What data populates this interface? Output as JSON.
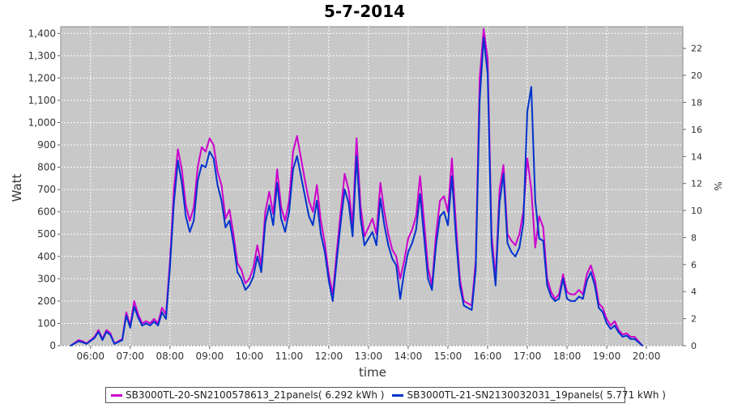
{
  "chart_data": {
    "type": "line",
    "title": "5-7-2014",
    "xlabel": "time",
    "ylabel": "Watt",
    "y2label": "%",
    "ylim": [
      0,
      1430
    ],
    "y2lim": [
      0,
      23.6
    ],
    "y_ticks": [
      "0",
      "100",
      "200",
      "300",
      "400",
      "500",
      "600",
      "700",
      "800",
      "900",
      "1,000",
      "1,100",
      "1,200",
      "1,300",
      "1,400"
    ],
    "y2_ticks": [
      "0",
      "2",
      "4",
      "6",
      "8",
      "10",
      "12",
      "14",
      "16",
      "18",
      "20",
      "22"
    ],
    "x_ticks": [
      "06:00",
      "07:00",
      "08:00",
      "09:00",
      "10:00",
      "11:00",
      "12:00",
      "13:00",
      "14:00",
      "15:00",
      "16:00",
      "17:00",
      "18:00",
      "19:00",
      "20:00"
    ],
    "xlim": [
      "05:15",
      "20:55"
    ],
    "grid": true,
    "background": "#c8c8c8",
    "series": [
      {
        "name": "SB3000TL-20-SN2100578613_21panels( 6.292 kWh )",
        "color": "#cc00cc",
        "points": [
          [
            "05:30",
            0
          ],
          [
            "05:42",
            25
          ],
          [
            "05:48",
            20
          ],
          [
            "05:54",
            10
          ],
          [
            "06:06",
            40
          ],
          [
            "06:12",
            70
          ],
          [
            "06:18",
            30
          ],
          [
            "06:24",
            70
          ],
          [
            "06:30",
            55
          ],
          [
            "06:36",
            10
          ],
          [
            "06:48",
            30
          ],
          [
            "06:54",
            150
          ],
          [
            "07:00",
            90
          ],
          [
            "07:06",
            200
          ],
          [
            "07:12",
            140
          ],
          [
            "07:18",
            100
          ],
          [
            "07:24",
            110
          ],
          [
            "07:30",
            100
          ],
          [
            "07:36",
            120
          ],
          [
            "07:42",
            100
          ],
          [
            "07:48",
            170
          ],
          [
            "07:54",
            140
          ],
          [
            "08:00",
            380
          ],
          [
            "08:06",
            700
          ],
          [
            "08:12",
            880
          ],
          [
            "08:18",
            790
          ],
          [
            "08:24",
            630
          ],
          [
            "08:30",
            560
          ],
          [
            "08:36",
            620
          ],
          [
            "08:42",
            800
          ],
          [
            "08:48",
            890
          ],
          [
            "08:54",
            870
          ],
          [
            "09:00",
            930
          ],
          [
            "09:06",
            900
          ],
          [
            "09:12",
            780
          ],
          [
            "09:18",
            720
          ],
          [
            "09:24",
            570
          ],
          [
            "09:30",
            610
          ],
          [
            "09:36",
            500
          ],
          [
            "09:42",
            370
          ],
          [
            "09:48",
            340
          ],
          [
            "09:54",
            280
          ],
          [
            "10:00",
            300
          ],
          [
            "10:06",
            350
          ],
          [
            "10:12",
            450
          ],
          [
            "10:18",
            360
          ],
          [
            "10:24",
            600
          ],
          [
            "10:30",
            690
          ],
          [
            "10:36",
            590
          ],
          [
            "10:42",
            790
          ],
          [
            "10:48",
            620
          ],
          [
            "10:54",
            560
          ],
          [
            "11:00",
            650
          ],
          [
            "11:06",
            870
          ],
          [
            "11:12",
            940
          ],
          [
            "11:18",
            840
          ],
          [
            "11:24",
            740
          ],
          [
            "11:30",
            650
          ],
          [
            "11:36",
            600
          ],
          [
            "11:42",
            720
          ],
          [
            "11:48",
            560
          ],
          [
            "11:54",
            460
          ],
          [
            "12:00",
            320
          ],
          [
            "12:06",
            230
          ],
          [
            "12:12",
            420
          ],
          [
            "12:18",
            600
          ],
          [
            "12:24",
            770
          ],
          [
            "12:30",
            700
          ],
          [
            "12:36",
            540
          ],
          [
            "12:42",
            930
          ],
          [
            "12:48",
            630
          ],
          [
            "12:54",
            490
          ],
          [
            "13:00",
            530
          ],
          [
            "13:06",
            570
          ],
          [
            "13:12",
            500
          ],
          [
            "13:18",
            730
          ],
          [
            "13:24",
            600
          ],
          [
            "13:30",
            500
          ],
          [
            "13:36",
            430
          ],
          [
            "13:42",
            400
          ],
          [
            "13:48",
            300
          ],
          [
            "13:54",
            380
          ],
          [
            "14:00",
            480
          ],
          [
            "14:06",
            520
          ],
          [
            "14:12",
            580
          ],
          [
            "14:18",
            760
          ],
          [
            "14:24",
            560
          ],
          [
            "14:30",
            350
          ],
          [
            "14:36",
            270
          ],
          [
            "14:42",
            500
          ],
          [
            "14:48",
            650
          ],
          [
            "14:54",
            670
          ],
          [
            "15:00",
            600
          ],
          [
            "15:06",
            840
          ],
          [
            "15:12",
            550
          ],
          [
            "15:18",
            300
          ],
          [
            "15:24",
            200
          ],
          [
            "15:30",
            190
          ],
          [
            "15:36",
            180
          ],
          [
            "15:42",
            380
          ],
          [
            "15:48",
            1200
          ],
          [
            "15:54",
            1420
          ],
          [
            "16:00",
            1290
          ],
          [
            "16:06",
            500
          ],
          [
            "16:12",
            300
          ],
          [
            "16:18",
            700
          ],
          [
            "16:24",
            810
          ],
          [
            "16:30",
            500
          ],
          [
            "16:36",
            470
          ],
          [
            "16:42",
            450
          ],
          [
            "16:48",
            500
          ],
          [
            "16:54",
            600
          ],
          [
            "17:00",
            840
          ],
          [
            "17:06",
            700
          ],
          [
            "17:12",
            440
          ],
          [
            "17:18",
            580
          ],
          [
            "17:24",
            530
          ],
          [
            "17:30",
            300
          ],
          [
            "17:36",
            240
          ],
          [
            "17:42",
            210
          ],
          [
            "17:48",
            230
          ],
          [
            "17:54",
            320
          ],
          [
            "18:00",
            240
          ],
          [
            "18:06",
            230
          ],
          [
            "18:12",
            230
          ],
          [
            "18:18",
            250
          ],
          [
            "18:24",
            230
          ],
          [
            "18:30",
            320
          ],
          [
            "18:36",
            360
          ],
          [
            "18:42",
            300
          ],
          [
            "18:48",
            190
          ],
          [
            "18:54",
            170
          ],
          [
            "19:00",
            120
          ],
          [
            "19:06",
            90
          ],
          [
            "19:12",
            110
          ],
          [
            "19:18",
            70
          ],
          [
            "19:24",
            50
          ],
          [
            "19:30",
            55
          ],
          [
            "19:36",
            40
          ],
          [
            "19:42",
            40
          ],
          [
            "19:48",
            20
          ],
          [
            "19:54",
            0
          ]
        ]
      },
      {
        "name": "SB3000TL-21-SN2130032031_19panels( 5.771 kWh )",
        "color": "#0033cc",
        "points": [
          [
            "05:30",
            0
          ],
          [
            "05:42",
            20
          ],
          [
            "05:48",
            15
          ],
          [
            "05:54",
            8
          ],
          [
            "06:06",
            35
          ],
          [
            "06:12",
            62
          ],
          [
            "06:18",
            25
          ],
          [
            "06:24",
            62
          ],
          [
            "06:30",
            48
          ],
          [
            "06:36",
            8
          ],
          [
            "06:48",
            25
          ],
          [
            "06:54",
            135
          ],
          [
            "07:00",
            80
          ],
          [
            "07:06",
            175
          ],
          [
            "07:12",
            125
          ],
          [
            "07:18",
            90
          ],
          [
            "07:24",
            100
          ],
          [
            "07:30",
            90
          ],
          [
            "07:36",
            108
          ],
          [
            "07:42",
            90
          ],
          [
            "07:48",
            150
          ],
          [
            "07:54",
            120
          ],
          [
            "08:00",
            350
          ],
          [
            "08:06",
            640
          ],
          [
            "08:12",
            830
          ],
          [
            "08:18",
            730
          ],
          [
            "08:24",
            580
          ],
          [
            "08:30",
            510
          ],
          [
            "08:36",
            560
          ],
          [
            "08:42",
            740
          ],
          [
            "08:48",
            810
          ],
          [
            "08:54",
            800
          ],
          [
            "09:00",
            870
          ],
          [
            "09:06",
            840
          ],
          [
            "09:12",
            720
          ],
          [
            "09:18",
            650
          ],
          [
            "09:24",
            530
          ],
          [
            "09:30",
            560
          ],
          [
            "09:36",
            460
          ],
          [
            "09:42",
            330
          ],
          [
            "09:48",
            300
          ],
          [
            "09:54",
            250
          ],
          [
            "10:00",
            270
          ],
          [
            "10:06",
            310
          ],
          [
            "10:12",
            400
          ],
          [
            "10:18",
            330
          ],
          [
            "10:24",
            550
          ],
          [
            "10:30",
            630
          ],
          [
            "10:36",
            540
          ],
          [
            "10:42",
            730
          ],
          [
            "10:48",
            570
          ],
          [
            "10:54",
            510
          ],
          [
            "11:00",
            600
          ],
          [
            "11:06",
            790
          ],
          [
            "11:12",
            850
          ],
          [
            "11:18",
            760
          ],
          [
            "11:24",
            670
          ],
          [
            "11:30",
            580
          ],
          [
            "11:36",
            540
          ],
          [
            "11:42",
            650
          ],
          [
            "11:48",
            500
          ],
          [
            "11:54",
            420
          ],
          [
            "12:00",
            290
          ],
          [
            "12:06",
            200
          ],
          [
            "12:12",
            380
          ],
          [
            "12:18",
            550
          ],
          [
            "12:24",
            700
          ],
          [
            "12:30",
            640
          ],
          [
            "12:36",
            490
          ],
          [
            "12:42",
            850
          ],
          [
            "12:48",
            570
          ],
          [
            "12:54",
            450
          ],
          [
            "13:00",
            480
          ],
          [
            "13:06",
            510
          ],
          [
            "13:12",
            450
          ],
          [
            "13:18",
            660
          ],
          [
            "13:24",
            540
          ],
          [
            "13:30",
            450
          ],
          [
            "13:36",
            390
          ],
          [
            "13:42",
            360
          ],
          [
            "13:48",
            210
          ],
          [
            "13:54",
            330
          ],
          [
            "14:00",
            420
          ],
          [
            "14:06",
            460
          ],
          [
            "14:12",
            520
          ],
          [
            "14:18",
            680
          ],
          [
            "14:24",
            490
          ],
          [
            "14:30",
            300
          ],
          [
            "14:36",
            250
          ],
          [
            "14:42",
            450
          ],
          [
            "14:48",
            580
          ],
          [
            "14:54",
            600
          ],
          [
            "15:00",
            540
          ],
          [
            "15:06",
            760
          ],
          [
            "15:12",
            490
          ],
          [
            "15:18",
            270
          ],
          [
            "15:24",
            180
          ],
          [
            "15:30",
            170
          ],
          [
            "15:36",
            160
          ],
          [
            "15:42",
            340
          ],
          [
            "15:48",
            1100
          ],
          [
            "15:54",
            1380
          ],
          [
            "16:00",
            1220
          ],
          [
            "16:06",
            450
          ],
          [
            "16:12",
            270
          ],
          [
            "16:18",
            640
          ],
          [
            "16:24",
            770
          ],
          [
            "16:30",
            460
          ],
          [
            "16:36",
            420
          ],
          [
            "16:42",
            400
          ],
          [
            "16:48",
            440
          ],
          [
            "16:54",
            550
          ],
          [
            "17:00",
            1050
          ],
          [
            "17:06",
            1160
          ],
          [
            "17:12",
            650
          ],
          [
            "17:18",
            480
          ],
          [
            "17:24",
            470
          ],
          [
            "17:30",
            270
          ],
          [
            "17:36",
            220
          ],
          [
            "17:42",
            200
          ],
          [
            "17:48",
            210
          ],
          [
            "17:54",
            300
          ],
          [
            "18:00",
            210
          ],
          [
            "18:06",
            200
          ],
          [
            "18:12",
            200
          ],
          [
            "18:18",
            220
          ],
          [
            "18:24",
            210
          ],
          [
            "18:30",
            290
          ],
          [
            "18:36",
            330
          ],
          [
            "18:42",
            270
          ],
          [
            "18:48",
            170
          ],
          [
            "18:54",
            150
          ],
          [
            "19:00",
            100
          ],
          [
            "19:06",
            75
          ],
          [
            "19:12",
            90
          ],
          [
            "19:18",
            60
          ],
          [
            "19:24",
            40
          ],
          [
            "19:30",
            45
          ],
          [
            "19:36",
            30
          ],
          [
            "19:42",
            30
          ],
          [
            "19:48",
            15
          ],
          [
            "19:54",
            0
          ]
        ]
      }
    ]
  }
}
